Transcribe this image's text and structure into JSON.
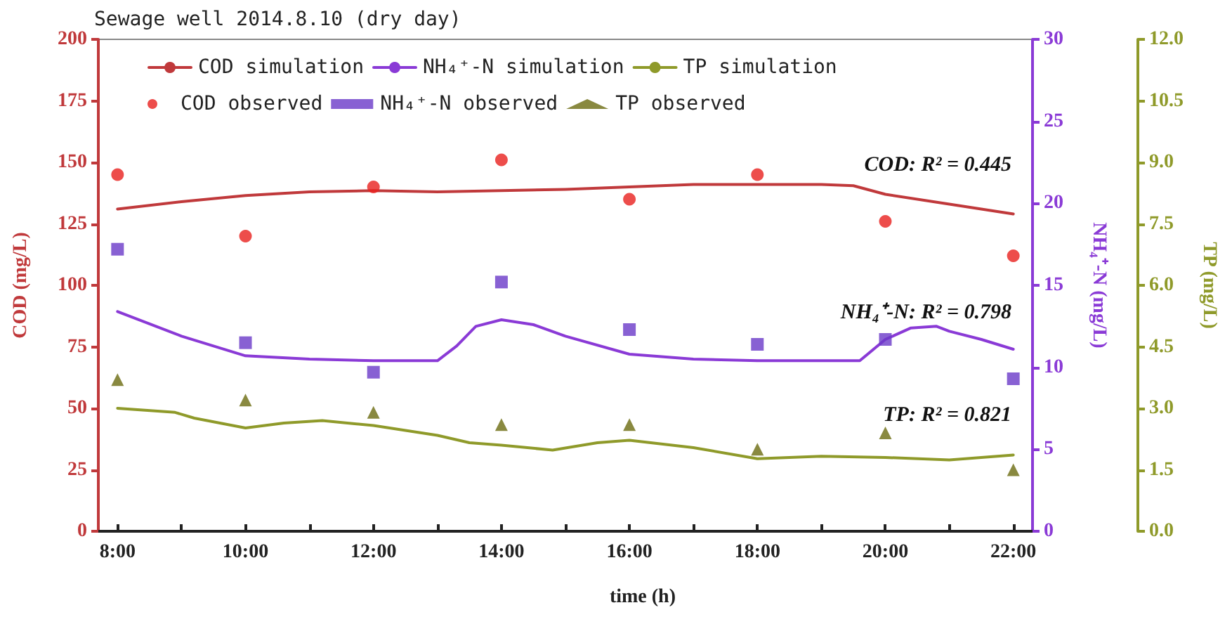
{
  "chart_data": {
    "type": "line",
    "title": "Sewage well 2014.8.10 (dry day)",
    "xlabel": "time (h)",
    "ylabel": "COD (mg/L)",
    "y2label": "NH₄⁺-N (mg/L)",
    "y3label": "TP (mg/L)",
    "annotations": [
      "COD: R² = 0.445",
      "NH₄⁺-N: R² = 0.798",
      "TP: R² = 0.821"
    ],
    "xlim": [
      7.7,
      22.3
    ],
    "xticks": [
      {
        "value": 8,
        "label": "8:00"
      },
      {
        "value": 9,
        "label": null
      },
      {
        "value": 10,
        "label": "10:00"
      },
      {
        "value": 11,
        "label": null
      },
      {
        "value": 12,
        "label": "12:00"
      },
      {
        "value": 13,
        "label": null
      },
      {
        "value": 14,
        "label": "14:00"
      },
      {
        "value": 15,
        "label": null
      },
      {
        "value": 16,
        "label": "16:00"
      },
      {
        "value": 17,
        "label": null
      },
      {
        "value": 18,
        "label": "18:00"
      },
      {
        "value": 19,
        "label": null
      },
      {
        "value": 20,
        "label": "20:00"
      },
      {
        "value": 21,
        "label": null
      },
      {
        "value": 22,
        "label": "22:00"
      }
    ],
    "ylim": [
      0,
      200
    ],
    "yticks": [
      0,
      25,
      50,
      75,
      100,
      125,
      150,
      175,
      200
    ],
    "y2lim": [
      0,
      30
    ],
    "y2ticks": [
      0,
      5,
      10,
      15,
      20,
      25,
      30
    ],
    "y3lim": [
      0,
      12
    ],
    "y3ticks": [
      {
        "value": 0,
        "label": "0.0"
      },
      {
        "value": 1.5,
        "label": "1.5"
      },
      {
        "value": 3,
        "label": "3.0"
      },
      {
        "value": 4.5,
        "label": "4.5"
      },
      {
        "value": 6,
        "label": "6.0"
      },
      {
        "value": 7.5,
        "label": "7.5"
      },
      {
        "value": 9,
        "label": "9.0"
      },
      {
        "value": 10.5,
        "label": "10.5"
      },
      {
        "value": 12,
        "label": "12.0"
      }
    ],
    "grid": false,
    "legend": "top left",
    "line_style": "solid",
    "series": [
      {
        "name": "COD simulation",
        "axis": "y",
        "marker": "none",
        "color": "#c0393b",
        "x": [
          8,
          9,
          10,
          11,
          12,
          13,
          14,
          15,
          16,
          17,
          18,
          19,
          19.5,
          20,
          21,
          22
        ],
        "values": [
          131,
          134,
          136.5,
          138,
          138.5,
          138,
          138.5,
          139,
          140,
          141,
          141,
          141,
          140.5,
          137,
          133,
          129
        ]
      },
      {
        "name": "NH₄⁺-N simulation",
        "axis": "y2",
        "marker": "none",
        "color": "#8a3ad6",
        "x": [
          8,
          9,
          10,
          11,
          12,
          13,
          13.3,
          13.6,
          14,
          14.5,
          15,
          16,
          17,
          18,
          19,
          19.6,
          20,
          20.4,
          20.8,
          21,
          21.5,
          22
        ],
        "values": [
          13.4,
          11.9,
          10.7,
          10.5,
          10.4,
          10.4,
          11.3,
          12.5,
          12.9,
          12.6,
          11.9,
          10.8,
          10.5,
          10.4,
          10.4,
          10.4,
          11.7,
          12.4,
          12.5,
          12.2,
          11.7,
          11.1
        ]
      },
      {
        "name": "TP simulation",
        "axis": "y3",
        "marker": "none",
        "color": "#8f9a2a",
        "x": [
          8,
          8.9,
          9.2,
          10,
          10.6,
          11.2,
          12,
          13,
          13.5,
          14,
          14.8,
          15.5,
          16,
          17,
          18,
          19,
          20,
          21,
          22
        ],
        "values": [
          3.0,
          2.9,
          2.76,
          2.52,
          2.64,
          2.7,
          2.58,
          2.34,
          2.16,
          2.1,
          1.98,
          2.16,
          2.22,
          2.04,
          1.77,
          1.83,
          1.8,
          1.74,
          1.86
        ]
      },
      {
        "name": "COD observed",
        "type": "scatter",
        "axis": "y",
        "marker": "circle",
        "color": "#e8201e",
        "x": [
          8,
          10,
          12,
          14,
          16,
          18,
          20,
          22
        ],
        "values": [
          145,
          120,
          140,
          151,
          135,
          145,
          126,
          112
        ]
      },
      {
        "name": "NH₄⁺-N observed",
        "type": "scatter",
        "axis": "y2",
        "marker": "square",
        "color": "#6a3ac8",
        "x": [
          8,
          10,
          12,
          14,
          16,
          18,
          20,
          22
        ],
        "values": [
          17.2,
          11.5,
          9.7,
          15.2,
          12.3,
          11.4,
          11.7,
          9.3
        ]
      },
      {
        "name": "TP observed",
        "type": "scatter",
        "axis": "y3",
        "marker": "triangle",
        "color": "#6b6b10",
        "x": [
          8,
          10,
          12,
          14,
          16,
          18,
          20,
          22
        ],
        "values": [
          3.7,
          3.2,
          2.9,
          2.6,
          2.6,
          2.0,
          2.4,
          1.5
        ]
      }
    ]
  }
}
